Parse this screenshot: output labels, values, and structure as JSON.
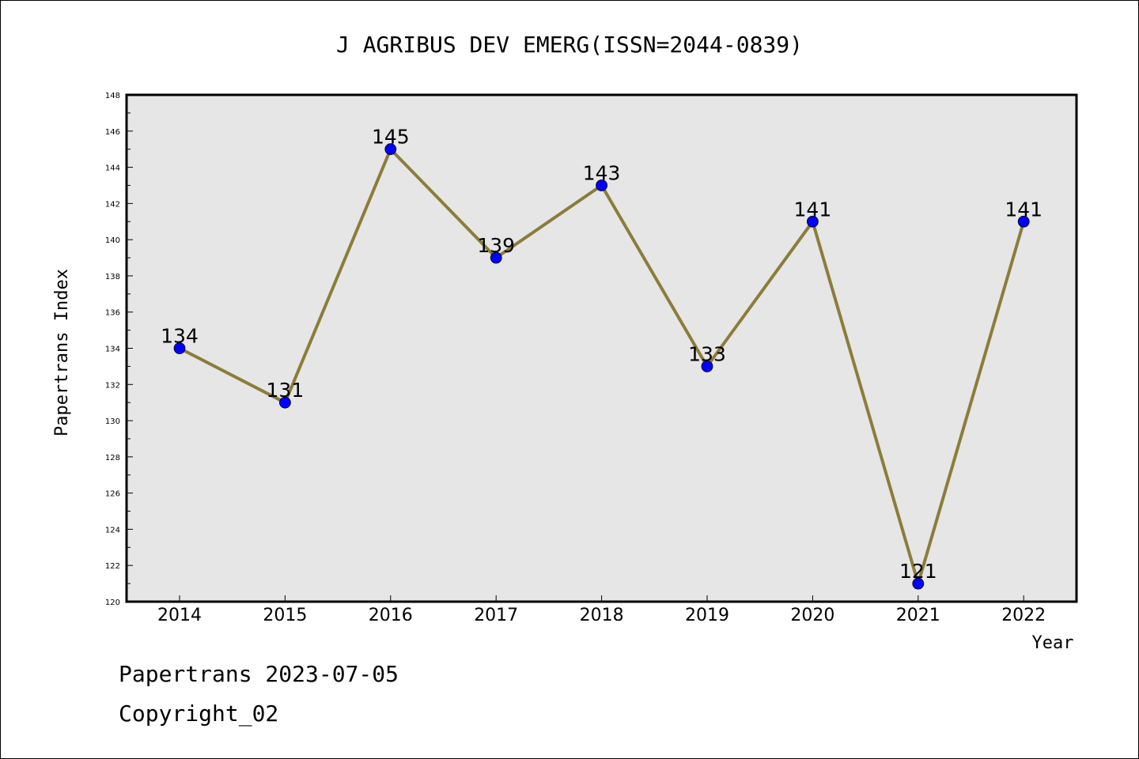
{
  "chart_data": {
    "type": "line",
    "title": "J AGRIBUS DEV EMERG(ISSN=2044-0839)",
    "xlabel": "Year",
    "ylabel": "Papertrans Index",
    "categories": [
      "2014",
      "2015",
      "2016",
      "2017",
      "2018",
      "2019",
      "2020",
      "2021",
      "2022"
    ],
    "values": [
      134,
      131,
      145,
      139,
      143,
      133,
      141,
      121,
      141
    ],
    "ylim": [
      120,
      148
    ],
    "yticks": [
      120,
      122,
      124,
      126,
      128,
      130,
      132,
      134,
      136,
      138,
      140,
      142,
      144,
      146,
      148
    ],
    "grid": false,
    "legend": "none",
    "colors": {
      "plot_background": "#e6e6e6",
      "line": "#8b7d3a",
      "marker": "#0000ff"
    }
  },
  "footer": {
    "date_line": "Papertrans 2023-07-05",
    "copyright": "Copyright_02"
  }
}
